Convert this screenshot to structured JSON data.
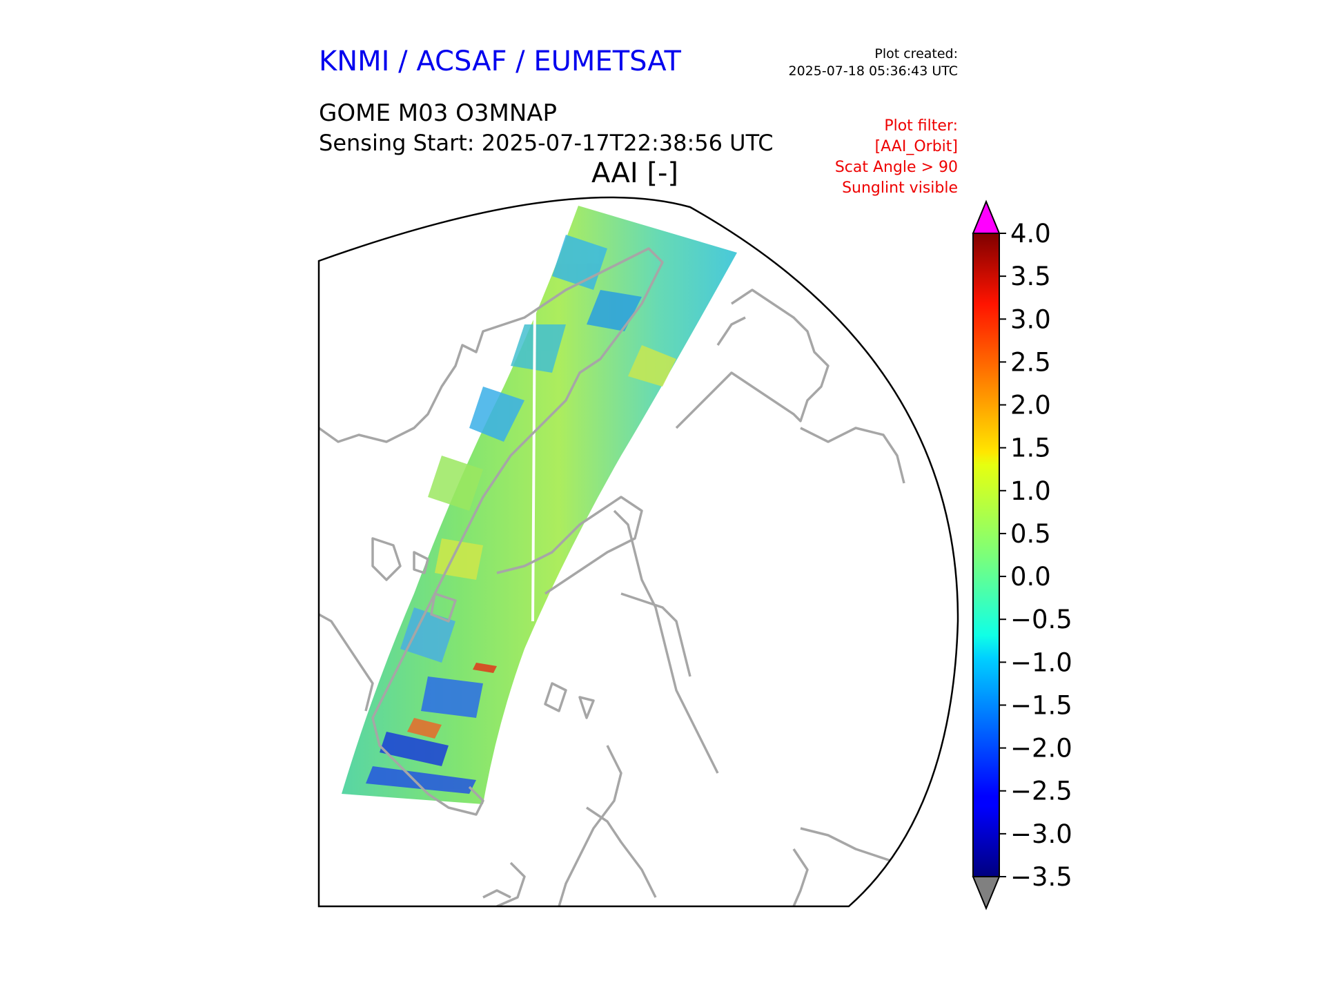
{
  "header": {
    "agency": "KNMI / ACSAF / EUMETSAT",
    "plot_created_label": "Plot created:",
    "plot_created_time": "2025-07-18 05:36:43 UTC",
    "product": "GOME M03 O3MNAP",
    "sensing_start": "Sensing Start: 2025-07-17T22:38:56 UTC",
    "map_title": "AAI [-]"
  },
  "plot_filter": {
    "label": "Plot filter:",
    "lines": [
      "[AAI_Orbit]",
      "Scat Angle > 90",
      "Sunglint visible"
    ]
  },
  "colorbar": {
    "min": -3.5,
    "max": 4.0,
    "ticks": [
      "4.0",
      "3.5",
      "3.0",
      "2.5",
      "2.0",
      "1.5",
      "1.0",
      "0.5",
      "0.0",
      "−0.5",
      "−1.0",
      "−1.5",
      "−2.0",
      "−2.5",
      "−3.0",
      "−3.5"
    ],
    "tick_values": [
      4.0,
      3.5,
      3.0,
      2.5,
      2.0,
      1.5,
      1.0,
      0.5,
      0.0,
      -0.5,
      -1.0,
      -1.5,
      -2.0,
      -2.5,
      -3.0,
      -3.5
    ],
    "over_color": "#ff00ff",
    "under_color": "#808080",
    "colormap": "jet"
  },
  "colors": {
    "coastline": "#a6a6a6",
    "swath_base": "#5fe07a",
    "frame": "#000000"
  }
}
